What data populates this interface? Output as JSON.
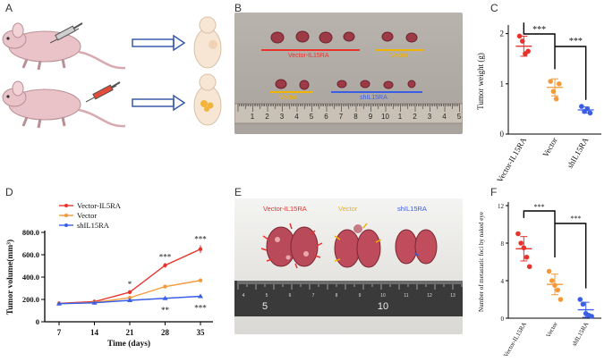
{
  "panels": {
    "a": "A",
    "b": "B",
    "c": "C",
    "d": "D",
    "e": "E",
    "f": "F"
  },
  "panel_b": {
    "group_top_left": "Vector-IL15RA",
    "group_top_right": "Vector",
    "group_bottom_left": "Vector",
    "group_bottom_right": "shIL15RA",
    "ruler_numbers": [
      "1",
      "2",
      "3",
      "4",
      "5",
      "6",
      "7",
      "8",
      "9",
      "10",
      "1",
      "2",
      "3",
      "4",
      "5"
    ]
  },
  "panel_e": {
    "label_1": "Vector-IL15RA",
    "label_2": "Vector",
    "label_3": "shIL15RA",
    "ruler_numbers": [
      "4",
      "5",
      "6",
      "7",
      "8",
      "9",
      "10",
      "11",
      "12",
      "13"
    ],
    "ruler_big_numbers": [
      "5",
      "10"
    ]
  },
  "colors": {
    "red": "#e8332c",
    "orange": "#f39a3b",
    "blue": "#3b5ee6",
    "label_red": "#e8332c",
    "label_yellow": "#f0b400",
    "label_blue": "#3b5ee6"
  },
  "chart_data": [
    {
      "id": "C",
      "type": "scatter",
      "ylabel": "Tumor weight (g)",
      "categories": [
        "Vector-IL15RA",
        "Vector",
        "shIL15RA"
      ],
      "yticks": [
        "0",
        "1",
        "2"
      ],
      "ylim": [
        0,
        2.1
      ],
      "points": [
        [
          1.95,
          1.85,
          1.6,
          1.65
        ],
        [
          1.05,
          0.85,
          0.7,
          1.0
        ],
        [
          0.55,
          0.45,
          0.5,
          0.42
        ]
      ],
      "means": [
        1.75,
        0.93,
        0.48
      ],
      "sd": [
        0.2,
        0.17,
        0.06
      ],
      "significance": [
        "***",
        "***"
      ]
    },
    {
      "id": "D",
      "type": "line",
      "xlabel": "Time (days)",
      "ylabel": "Tumor volume(mm³)",
      "x": [
        7,
        14,
        21,
        28,
        35
      ],
      "xticks": [
        "7",
        "14",
        "21",
        "28",
        "35"
      ],
      "yticks": [
        "0",
        "200.0",
        "400.0",
        "600.0",
        "800.0"
      ],
      "ylim": [
        0,
        800
      ],
      "series": [
        {
          "name": "Vector-IL5RA",
          "values": [
            165,
            180,
            265,
            505,
            650
          ],
          "err": [
            5,
            8,
            15,
            20,
            35
          ]
        },
        {
          "name": "Vector",
          "values": [
            163,
            172,
            215,
            315,
            370
          ],
          "err": [
            5,
            6,
            10,
            12,
            14
          ]
        },
        {
          "name": "shIL15RA",
          "values": [
            162,
            170,
            192,
            210,
            228
          ],
          "err": [
            5,
            5,
            6,
            7,
            8
          ]
        }
      ],
      "annotations_top": [
        {
          "x": 21,
          "text": "*"
        },
        {
          "x": 28,
          "text": "***"
        },
        {
          "x": 35,
          "text": "***"
        }
      ],
      "annotations_bottom": [
        {
          "x": 28,
          "text": "**"
        },
        {
          "x": 35,
          "text": "***"
        }
      ]
    },
    {
      "id": "F",
      "type": "scatter",
      "ylabel": "Number of metastatic foci by naked eye",
      "categories": [
        "Vector-IL15RA",
        "Vector",
        "shIL15RA"
      ],
      "yticks": [
        "0",
        "4",
        "8",
        "12"
      ],
      "ylim": [
        0,
        12
      ],
      "points": [
        [
          9,
          8,
          7.5,
          6.5,
          5.5
        ],
        [
          5,
          4,
          3.5,
          3,
          2
        ],
        [
          2,
          1.5,
          0.5,
          0.3,
          0.2
        ]
      ],
      "means": [
        7.4,
        3.6,
        0.9
      ],
      "sd": [
        1.3,
        1.1,
        0.8
      ],
      "significance": [
        "***",
        "***"
      ]
    }
  ]
}
